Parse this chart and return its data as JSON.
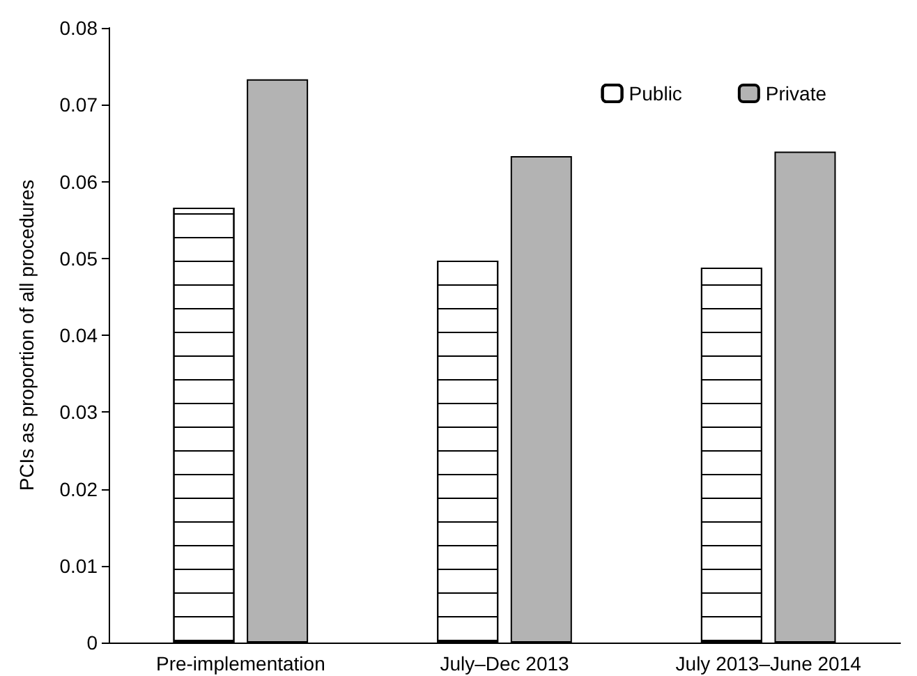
{
  "chart_data": {
    "type": "bar",
    "ylabel": "PCIs as proportion of all procedures",
    "categories": [
      "Pre-implementation",
      "July–Dec 2013",
      "July 2013–June 2014"
    ],
    "series": [
      {
        "name": "Public",
        "color": "#ffffff",
        "values": [
          0.0566,
          0.0497,
          0.0488
        ]
      },
      {
        "name": "Private",
        "color": "#b3b3b3",
        "values": [
          0.0733,
          0.0633,
          0.0639
        ]
      }
    ],
    "ylim": [
      0,
      0.08
    ],
    "yticks": [
      0,
      0.01,
      0.02,
      0.03,
      0.04,
      0.05,
      0.06,
      0.07,
      0.08
    ],
    "legend": "top right"
  }
}
